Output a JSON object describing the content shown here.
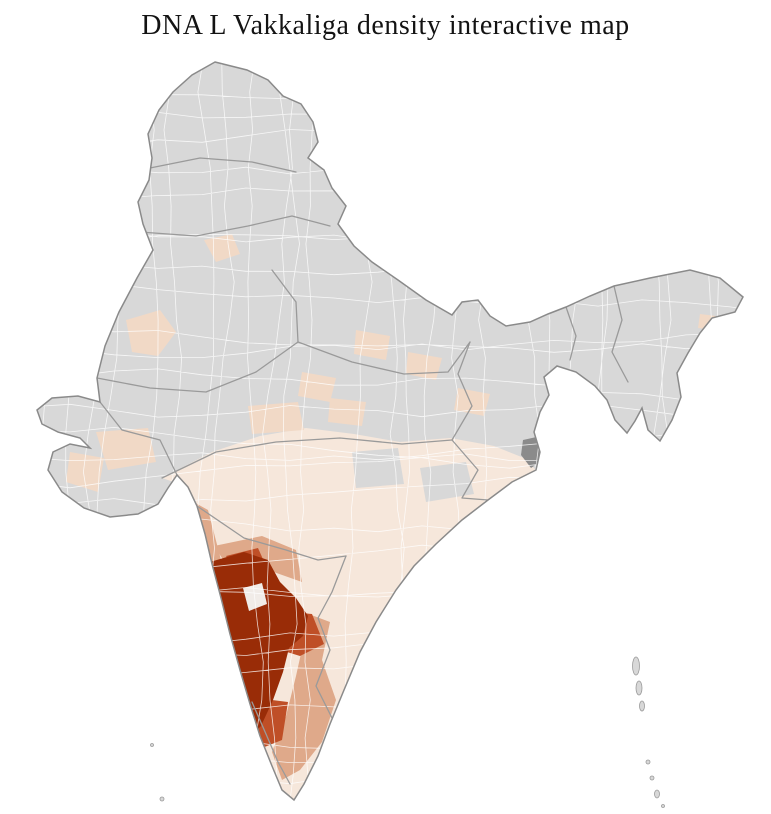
{
  "page": {
    "title": "DNA L Vakkaliga density interactive map",
    "background": "#ffffff"
  },
  "map": {
    "label": "india-district-density-choropleth",
    "region": "India",
    "level": "districts",
    "palette": {
      "no_data": "#d8d8d8",
      "very_low": "#f6e7db",
      "low": "#f1d9c6",
      "medium": "#dfa98a",
      "high": "#bf4f27",
      "very_high": "#992c07",
      "inner_light": "#f1ece8",
      "urban_dark": "#8b8b8b",
      "district_border": "#ffffff",
      "state_border": "#9a9a9a",
      "outline": "#8a8a8a",
      "ocean": "#ffffff"
    }
  }
}
